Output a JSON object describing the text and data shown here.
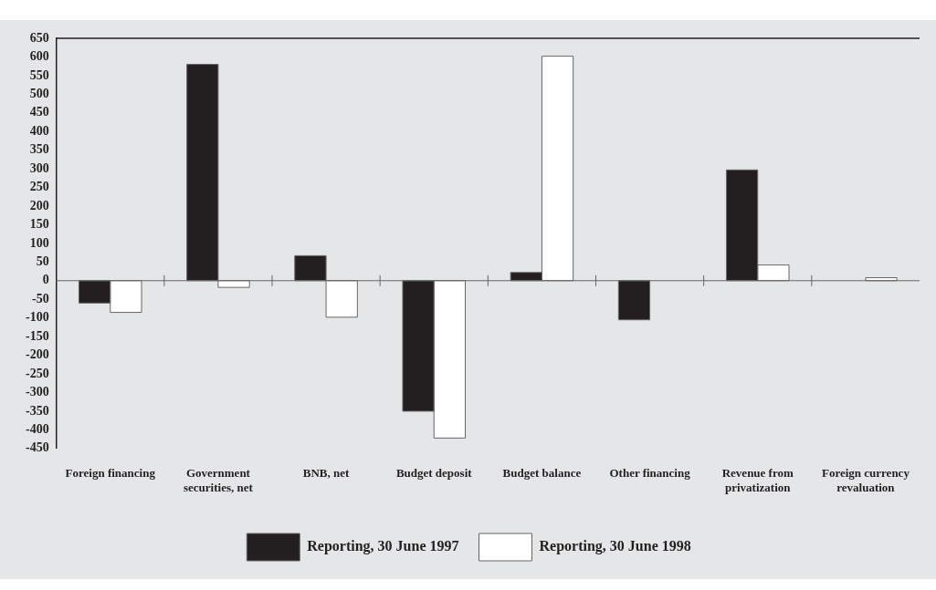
{
  "chart_data": {
    "type": "bar",
    "categories": [
      "Foreign financing",
      "Government securities, net",
      "BNB, net",
      "Budget deposit",
      "Budget balance",
      "Other financing",
      "Revenue from privatization",
      "Foreign currency revaluation"
    ],
    "series": [
      {
        "name": "Reporting, 30 June 1997",
        "color": "#231f20",
        "values": [
          -60,
          580,
          67,
          -350,
          22,
          -105,
          297,
          null
        ]
      },
      {
        "name": "Reporting, 30 June 1998",
        "color": "#ffffff",
        "values": [
          -85,
          -18,
          -98,
          -422,
          602,
          null,
          42,
          8
        ]
      }
    ],
    "ylim": [
      -450,
      650
    ],
    "yticks": [
      -450,
      -400,
      -350,
      -300,
      -250,
      -200,
      -150,
      -100,
      -50,
      0,
      50,
      100,
      150,
      200,
      250,
      300,
      350,
      400,
      450,
      500,
      550,
      600,
      650
    ],
    "legend": "bottom"
  }
}
